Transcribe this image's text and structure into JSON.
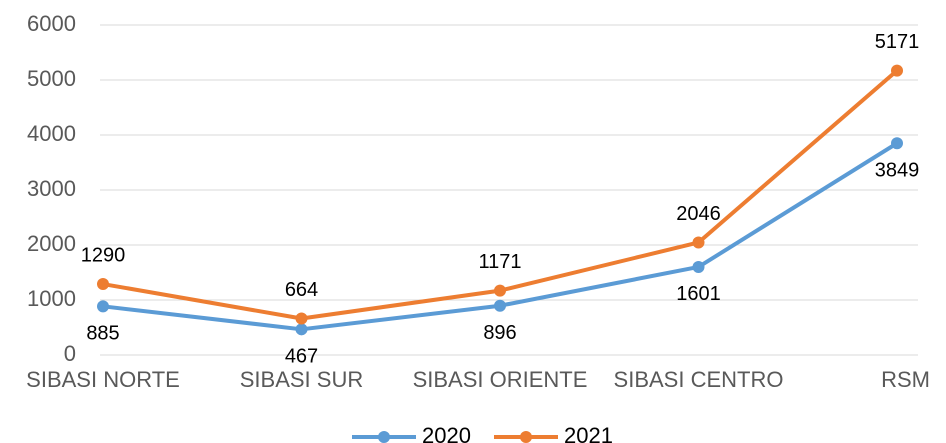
{
  "chart_data": {
    "type": "line",
    "categories": [
      "SIBASI NORTE",
      "SIBASI SUR",
      "SIBASI ORIENTE",
      "SIBASI CENTRO",
      "RSM"
    ],
    "series": [
      {
        "name": "2020",
        "color": "#5b9bd5",
        "values": [
          885,
          467,
          896,
          1601,
          3849
        ]
      },
      {
        "name": "2021",
        "color": "#ed7d31",
        "values": [
          1290,
          664,
          1171,
          2046,
          5171
        ]
      }
    ],
    "ylim": [
      0,
      6000
    ],
    "yticks": [
      0,
      1000,
      2000,
      3000,
      4000,
      5000,
      6000
    ],
    "grid": true,
    "legend": "bottom"
  }
}
